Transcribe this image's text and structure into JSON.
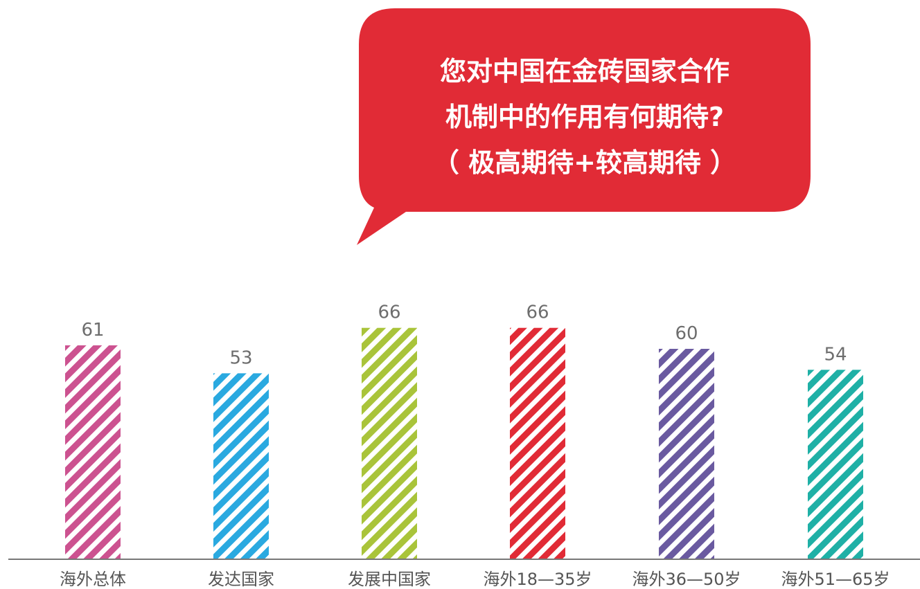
{
  "colors": {
    "bubble": "#e12b36",
    "axis": "#4a4a4a",
    "value_text": "#6d6d6d",
    "category_text": "#555555"
  },
  "bubble": {
    "line1": "您对中国在金砖国家合作",
    "line2": "机制中的作用有何期待?",
    "line3": "（ 极高期待+较高期待 ）"
  },
  "chart_data": {
    "type": "bar",
    "title": "您对中国在金砖国家合作机制中的作用有何期待?（ 极高期待+较高期待 ）",
    "xlabel": "",
    "ylabel": "",
    "grid": false,
    "fill_pattern": "diagonal-stripes",
    "categories": [
      "海外总体",
      "发达国家",
      "发展中国家",
      "海外18—35岁",
      "海外36—50岁",
      "海外51—65岁"
    ],
    "values": [
      61,
      53,
      66,
      66,
      60,
      54
    ],
    "value_labels": [
      "61",
      "53",
      "66",
      "66",
      "60",
      "54"
    ],
    "bar_colors": [
      "#cc5290",
      "#2aa9e0",
      "#a9c43a",
      "#e12b36",
      "#6a5aa0",
      "#1fb0a6"
    ]
  }
}
